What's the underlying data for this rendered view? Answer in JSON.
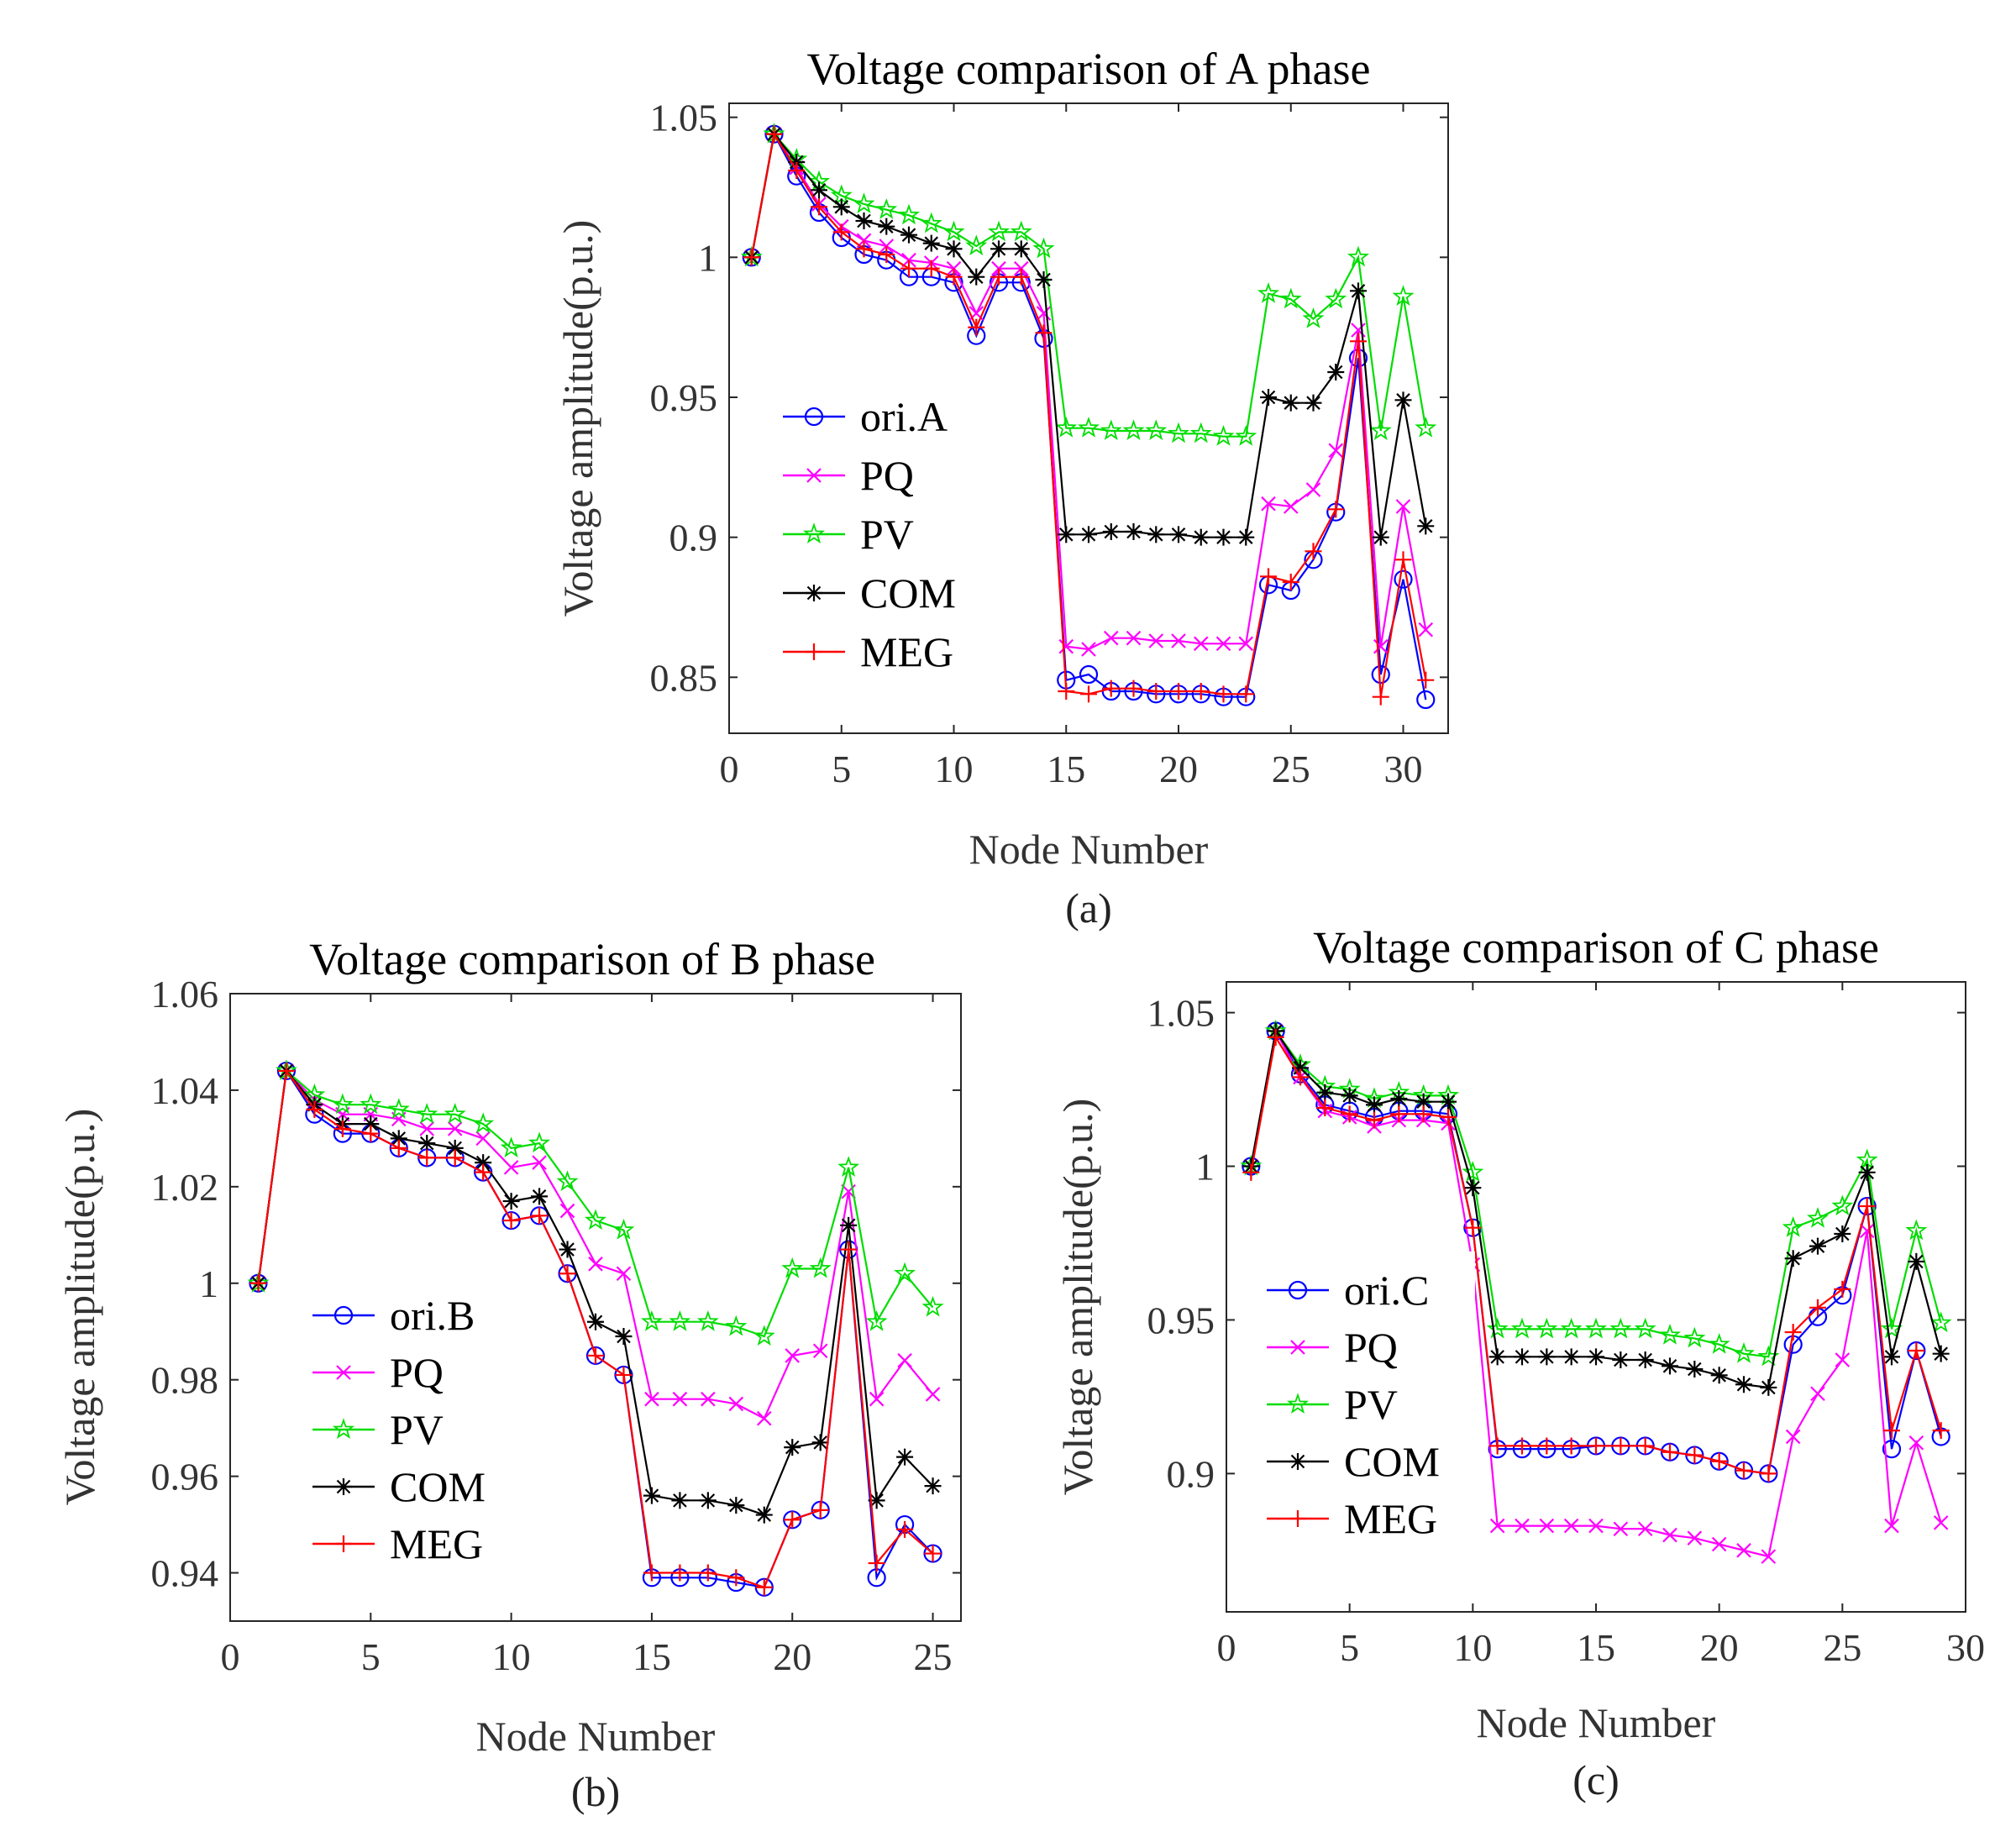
{
  "figure": {
    "colors": {
      "ori": "#0000FF",
      "PQ": "#FF00FF",
      "PV": "#00DD00",
      "COM": "#000000",
      "MEG": "#FF0000"
    }
  },
  "chart_data": [
    {
      "id": "a",
      "type": "line",
      "caption": "(a)",
      "title": "Voltage comparison of A phase",
      "xlabel": "Node Number",
      "ylabel": "Voltage amplitude(p.u.)",
      "xlim": [
        0,
        32
      ],
      "ylim": [
        0.83,
        1.055
      ],
      "xticks": [
        0,
        5,
        10,
        15,
        20,
        25,
        30
      ],
      "yticks": [
        0.85,
        0.9,
        0.95,
        1,
        1.05
      ],
      "ytick_labels": [
        "0.85",
        "0.9",
        "0.95",
        "1",
        "1.05"
      ],
      "x": [
        1,
        2,
        3,
        4,
        5,
        6,
        7,
        8,
        9,
        10,
        11,
        12,
        13,
        14,
        15,
        16,
        17,
        18,
        19,
        20,
        21,
        22,
        23,
        24,
        25,
        26,
        27,
        28,
        29,
        30,
        31
      ],
      "series": [
        {
          "name": "ori.A",
          "key": "ori",
          "marker": "circle",
          "values": [
            1.0,
            1.044,
            1.029,
            1.016,
            1.007,
            1.001,
            0.999,
            0.993,
            0.993,
            0.991,
            0.972,
            0.991,
            0.991,
            0.971,
            0.849,
            0.851,
            0.845,
            0.845,
            0.844,
            0.844,
            0.844,
            0.843,
            0.843,
            0.883,
            0.881,
            0.892,
            0.909,
            0.964,
            0.851,
            0.885,
            0.842
          ]
        },
        {
          "name": "PQ",
          "key": "PQ",
          "marker": "x",
          "values": [
            1.0,
            1.044,
            1.032,
            1.019,
            1.011,
            1.006,
            1.004,
            0.999,
            0.998,
            0.996,
            0.98,
            0.996,
            0.996,
            0.98,
            0.861,
            0.86,
            0.864,
            0.864,
            0.863,
            0.863,
            0.862,
            0.862,
            0.862,
            0.912,
            0.911,
            0.917,
            0.931,
            0.974,
            0.861,
            0.911,
            0.867
          ]
        },
        {
          "name": "PV",
          "key": "PV",
          "marker": "star",
          "values": [
            1.0,
            1.044,
            1.035,
            1.027,
            1.022,
            1.019,
            1.017,
            1.015,
            1.012,
            1.009,
            1.004,
            1.009,
            1.009,
            1.003,
            0.939,
            0.939,
            0.938,
            0.938,
            0.938,
            0.937,
            0.937,
            0.936,
            0.936,
            0.987,
            0.985,
            0.978,
            0.985,
            1.0,
            0.938,
            0.986,
            0.939
          ]
        },
        {
          "name": "COM",
          "key": "COM",
          "marker": "asterisk",
          "values": [
            1.0,
            1.044,
            1.034,
            1.024,
            1.018,
            1.013,
            1.011,
            1.008,
            1.005,
            1.003,
            0.993,
            1.003,
            1.003,
            0.992,
            0.901,
            0.901,
            0.902,
            0.902,
            0.901,
            0.901,
            0.9,
            0.9,
            0.9,
            0.95,
            0.948,
            0.948,
            0.959,
            0.988,
            0.9,
            0.949,
            0.904
          ]
        },
        {
          "name": "MEG",
          "key": "MEG",
          "marker": "plus",
          "values": [
            1.0,
            1.044,
            1.031,
            1.018,
            1.009,
            1.003,
            1.001,
            0.996,
            0.996,
            0.993,
            0.975,
            0.993,
            0.993,
            0.973,
            0.845,
            0.844,
            0.846,
            0.846,
            0.845,
            0.845,
            0.845,
            0.844,
            0.844,
            0.886,
            0.884,
            0.895,
            0.91,
            0.97,
            0.843,
            0.892,
            0.849
          ]
        }
      ]
    },
    {
      "id": "b",
      "type": "line",
      "caption": "(b)",
      "title": "Voltage comparison of B phase",
      "xlabel": "Node Number",
      "ylabel": "Voltage amplitude(p.u.)",
      "xlim": [
        0,
        26
      ],
      "ylim": [
        0.93,
        1.06
      ],
      "xticks": [
        0,
        5,
        10,
        15,
        20,
        25
      ],
      "yticks": [
        0.94,
        0.96,
        0.98,
        1,
        1.02,
        1.04,
        1.06
      ],
      "ytick_labels": [
        "0.94",
        "0.96",
        "0.98",
        "1",
        "1.02",
        "1.04",
        "1.06"
      ],
      "x": [
        1,
        2,
        3,
        4,
        5,
        6,
        7,
        8,
        9,
        10,
        11,
        12,
        13,
        14,
        15,
        16,
        17,
        18,
        19,
        20,
        21,
        22,
        23,
        24,
        25
      ],
      "series": [
        {
          "name": "ori.B",
          "key": "ori",
          "marker": "circle",
          "values": [
            1.0,
            1.044,
            1.035,
            1.031,
            1.031,
            1.028,
            1.026,
            1.026,
            1.023,
            1.013,
            1.014,
            1.002,
            0.985,
            0.981,
            0.939,
            0.939,
            0.939,
            0.938,
            0.937,
            0.951,
            0.953,
            1.007,
            0.939,
            0.95,
            0.944
          ]
        },
        {
          "name": "PQ",
          "key": "PQ",
          "marker": "x",
          "values": [
            1.0,
            1.044,
            1.038,
            1.035,
            1.035,
            1.034,
            1.032,
            1.032,
            1.03,
            1.024,
            1.025,
            1.015,
            1.004,
            1.002,
            0.976,
            0.976,
            0.976,
            0.975,
            0.972,
            0.985,
            0.986,
            1.019,
            0.976,
            0.984,
            0.977
          ]
        },
        {
          "name": "PV",
          "key": "PV",
          "marker": "star",
          "values": [
            1.0,
            1.044,
            1.039,
            1.037,
            1.037,
            1.036,
            1.035,
            1.035,
            1.033,
            1.028,
            1.029,
            1.021,
            1.013,
            1.011,
            0.992,
            0.992,
            0.992,
            0.991,
            0.989,
            1.003,
            1.003,
            1.024,
            0.992,
            1.002,
            0.995
          ]
        },
        {
          "name": "COM",
          "key": "COM",
          "marker": "asterisk",
          "values": [
            1.0,
            1.044,
            1.037,
            1.033,
            1.033,
            1.03,
            1.029,
            1.028,
            1.025,
            1.017,
            1.018,
            1.007,
            0.992,
            0.989,
            0.956,
            0.955,
            0.955,
            0.954,
            0.952,
            0.966,
            0.967,
            1.012,
            0.955,
            0.964,
            0.958
          ]
        },
        {
          "name": "MEG",
          "key": "MEG",
          "marker": "plus",
          "values": [
            1.0,
            1.044,
            1.036,
            1.032,
            1.031,
            1.028,
            1.026,
            1.026,
            1.023,
            1.013,
            1.014,
            1.002,
            0.985,
            0.981,
            0.94,
            0.94,
            0.94,
            0.939,
            0.937,
            0.951,
            0.953,
            1.007,
            0.942,
            0.949,
            0.944
          ]
        }
      ]
    },
    {
      "id": "c",
      "type": "line",
      "caption": "(c)",
      "title": "Voltage comparison of C phase",
      "xlabel": "Node Number",
      "ylabel": "Voltage amplitude(p.u.)",
      "xlim": [
        0,
        30
      ],
      "ylim": [
        0.855,
        1.06
      ],
      "xticks": [
        0,
        5,
        10,
        15,
        20,
        25,
        30
      ],
      "yticks": [
        0.9,
        0.95,
        1,
        1.05
      ],
      "ytick_labels": [
        "0.9",
        "0.95",
        "1",
        "1.05"
      ],
      "x": [
        1,
        2,
        3,
        4,
        5,
        6,
        7,
        8,
        9,
        10,
        11,
        12,
        13,
        14,
        15,
        16,
        17,
        18,
        19,
        20,
        21,
        22,
        23,
        24,
        25,
        26,
        27,
        28,
        29
      ],
      "series": [
        {
          "name": "ori.C",
          "key": "ori",
          "marker": "circle",
          "values": [
            1.0,
            1.044,
            1.03,
            1.02,
            1.018,
            1.016,
            1.018,
            1.018,
            1.017,
            0.98,
            0.908,
            0.908,
            0.908,
            0.908,
            0.909,
            0.909,
            0.909,
            0.907,
            0.906,
            0.904,
            0.901,
            0.9,
            0.942,
            0.951,
            0.958,
            0.987,
            0.908,
            0.94,
            0.912
          ]
        },
        {
          "name": "PQ",
          "key": "PQ",
          "marker": "x",
          "values": [
            1.0,
            1.044,
            1.029,
            1.018,
            1.016,
            1.013,
            1.015,
            1.015,
            1.014,
            0.968,
            0.883,
            0.883,
            0.883,
            0.883,
            0.883,
            0.882,
            0.882,
            0.88,
            0.879,
            0.877,
            0.875,
            0.873,
            0.912,
            0.926,
            0.937,
            0.979,
            0.883,
            0.91,
            0.884
          ]
        },
        {
          "name": "PV",
          "key": "PV",
          "marker": "star",
          "values": [
            1.0,
            1.044,
            1.033,
            1.026,
            1.025,
            1.022,
            1.024,
            1.023,
            1.023,
            0.998,
            0.947,
            0.947,
            0.947,
            0.947,
            0.947,
            0.947,
            0.947,
            0.945,
            0.944,
            0.942,
            0.939,
            0.938,
            0.98,
            0.983,
            0.987,
            1.002,
            0.947,
            0.979,
            0.949
          ]
        },
        {
          "name": "COM",
          "key": "COM",
          "marker": "asterisk",
          "values": [
            1.0,
            1.044,
            1.032,
            1.024,
            1.023,
            1.02,
            1.022,
            1.021,
            1.021,
            0.993,
            0.938,
            0.938,
            0.938,
            0.938,
            0.938,
            0.937,
            0.937,
            0.935,
            0.934,
            0.932,
            0.929,
            0.928,
            0.97,
            0.974,
            0.978,
            0.998,
            0.938,
            0.969,
            0.939
          ]
        },
        {
          "name": "MEG",
          "key": "MEG",
          "marker": "plus",
          "values": [
            0.998,
            1.042,
            1.029,
            1.019,
            1.017,
            1.015,
            1.017,
            1.017,
            1.016,
            0.98,
            0.909,
            0.909,
            0.909,
            0.909,
            0.909,
            0.909,
            0.909,
            0.907,
            0.906,
            0.904,
            0.901,
            0.9,
            0.946,
            0.954,
            0.96,
            0.987,
            0.914,
            0.94,
            0.914
          ]
        }
      ]
    }
  ]
}
